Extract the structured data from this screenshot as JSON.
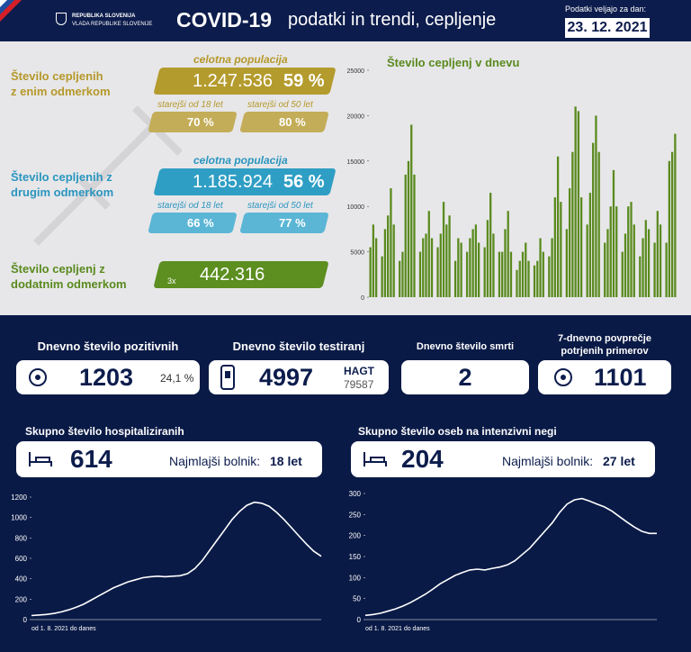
{
  "header": {
    "logo_line1": "REPUBLIKA SLOVENIJA",
    "logo_line2": "VLADA REPUBLIKE SLOVENIJE",
    "title": "COVID-19",
    "subtitle": "podatki in trendi, cepljenje",
    "date_label": "Podatki veljajo za dan:",
    "date": "23. 12. 2021"
  },
  "vaccination": [
    {
      "label_line1": "Število cepljenih",
      "label_line2": "z enim odmerkom",
      "total_caption": "celotna populacija",
      "total": "1.247.536",
      "percent": "59 %",
      "groups": [
        {
          "caption": "starejši od 18 let",
          "value": "70 %"
        },
        {
          "caption": "starejši od 50 let",
          "value": "80 %"
        }
      ]
    },
    {
      "label_line1": "Število cepljenih z",
      "label_line2": "drugim odmerkom",
      "total_caption": "celotna populacija",
      "total": "1.185.924",
      "percent": "56 %",
      "groups": [
        {
          "caption": "starejši od 18 let",
          "value": "66 %"
        },
        {
          "caption": "starejši od 50 let",
          "value": "77 %"
        }
      ]
    },
    {
      "label_line1": "Število cepljenj z",
      "label_line2": "dodatnim odmerkom",
      "badge": "3x",
      "total": "442.316"
    }
  ],
  "stats": [
    {
      "title": "Dnevno število pozitivnih",
      "value": "1203",
      "extra": "24,1 %"
    },
    {
      "title": "Dnevno število testiranj",
      "value": "4997",
      "extra_label": "HAGT",
      "extra": "79587"
    },
    {
      "title": "Dnevno število smrti",
      "value": "2"
    },
    {
      "title_line1": "7-dnevno povprečje",
      "title_line2": "potrjenih primerov",
      "value": "1101"
    }
  ],
  "hospital": [
    {
      "title": "Skupno število hospitaliziranih",
      "value": "614",
      "note_label": "Najmlajši bolnik:",
      "note_value": "18 let"
    },
    {
      "title": "Skupno število oseb na intenzivni negi",
      "value": "204",
      "note_label": "Najmlajši bolnik:",
      "note_value": "27 let"
    }
  ],
  "chart_data": [
    {
      "type": "bar",
      "title": "Število cepljenj v dnevu",
      "color": "#5a8a1e",
      "ylim": [
        0,
        25000
      ],
      "yticks": [
        0,
        5000,
        10000,
        15000,
        20000,
        25000
      ],
      "values": [
        5500,
        8000,
        6500,
        0,
        4500,
        7500,
        9000,
        12000,
        8000,
        0,
        4000,
        5000,
        13500,
        15000,
        19000,
        13500,
        0,
        5000,
        6500,
        7000,
        9500,
        6500,
        0,
        5500,
        7000,
        10500,
        8000,
        9000,
        0,
        4000,
        6500,
        6000,
        0,
        5000,
        6500,
        7500,
        8000,
        6000,
        0,
        5500,
        8500,
        11500,
        7000,
        0,
        5000,
        5000,
        7500,
        9500,
        5000,
        0,
        3000,
        4000,
        5000,
        6000,
        4000,
        0,
        3500,
        4000,
        6500,
        5000,
        0,
        4500,
        6500,
        11000,
        15500,
        10500,
        0,
        7500,
        12000,
        16000,
        21000,
        20500,
        11000,
        0,
        8000,
        11500,
        17000,
        20000,
        16000,
        0,
        6000,
        7500,
        10000,
        14000,
        10000,
        0,
        5000,
        7000,
        10000,
        10500,
        8000,
        0,
        4500,
        6500,
        8500,
        7500,
        0,
        6000,
        9500,
        8000,
        0,
        6000,
        15000,
        16000,
        18000
      ]
    },
    {
      "type": "line",
      "color": "#ffffff",
      "x_label": "od 1. 8. 2021 do danes",
      "ylim": [
        0,
        1200
      ],
      "yticks": [
        0,
        200,
        400,
        600,
        800,
        1000,
        1200
      ],
      "values": [
        40,
        45,
        50,
        60,
        75,
        95,
        120,
        150,
        190,
        230,
        270,
        310,
        340,
        370,
        390,
        410,
        420,
        425,
        420,
        425,
        430,
        450,
        500,
        580,
        680,
        780,
        880,
        980,
        1060,
        1120,
        1150,
        1140,
        1110,
        1050,
        980,
        900,
        820,
        740,
        670,
        620
      ]
    },
    {
      "type": "line",
      "color": "#ffffff",
      "x_label": "od 1. 8. 2021 do danes",
      "ylim": [
        0,
        300
      ],
      "yticks": [
        0,
        50,
        100,
        150,
        200,
        250,
        300
      ],
      "values": [
        10,
        12,
        15,
        20,
        25,
        32,
        40,
        50,
        60,
        72,
        85,
        95,
        105,
        112,
        118,
        120,
        118,
        122,
        125,
        130,
        140,
        155,
        170,
        190,
        210,
        230,
        255,
        275,
        285,
        288,
        282,
        275,
        268,
        258,
        245,
        232,
        220,
        210,
        205,
        205
      ]
    }
  ]
}
